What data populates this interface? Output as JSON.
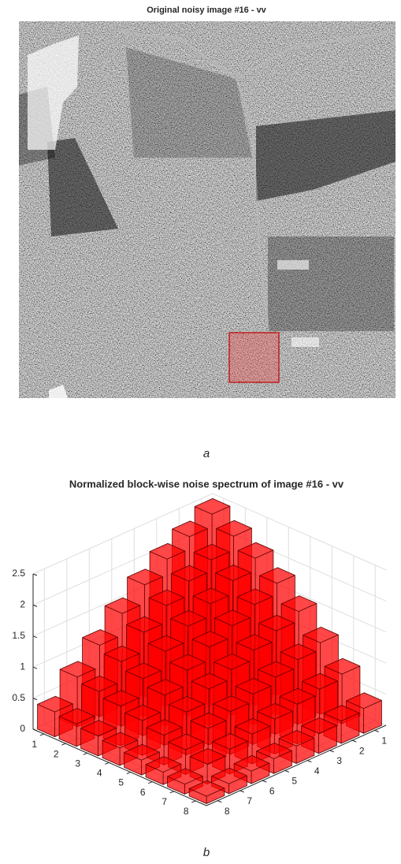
{
  "image_panel": {
    "title": "Original noisy image #16 - vv",
    "caption": "a"
  },
  "chart_data": {
    "type": "bar3",
    "title": "Normalized block-wise noise spectrum of image #16 - vv",
    "caption": "b",
    "xticks": [
      1,
      2,
      3,
      4,
      5,
      6,
      7,
      8
    ],
    "yticks": [
      1,
      2,
      3,
      4,
      5,
      6,
      7,
      8
    ],
    "zlim": [
      0,
      2.5
    ],
    "zticks": [
      0,
      0.5,
      1,
      1.5,
      2,
      2.5
    ],
    "z": [
      [
        2.45,
        2.25,
        2.05,
        1.8,
        1.5,
        1.15,
        0.8,
        0.4
      ],
      [
        2.25,
        2.03,
        1.85,
        1.62,
        1.35,
        1.04,
        0.72,
        0.36
      ],
      [
        2.05,
        1.85,
        1.64,
        1.44,
        1.2,
        0.92,
        0.64,
        0.32
      ],
      [
        1.8,
        1.62,
        1.44,
        1.26,
        1.05,
        0.81,
        0.56,
        0.28
      ],
      [
        1.5,
        1.35,
        1.2,
        1.05,
        0.9,
        0.69,
        0.48,
        0.24
      ],
      [
        1.15,
        1.04,
        0.92,
        0.81,
        0.69,
        0.58,
        0.4,
        0.2
      ],
      [
        0.8,
        0.72,
        0.64,
        0.56,
        0.48,
        0.4,
        0.32,
        0.16
      ],
      [
        0.4,
        0.36,
        0.32,
        0.28,
        0.24,
        0.2,
        0.16,
        0.12
      ]
    ],
    "color": "#ff0000",
    "grid": true
  }
}
